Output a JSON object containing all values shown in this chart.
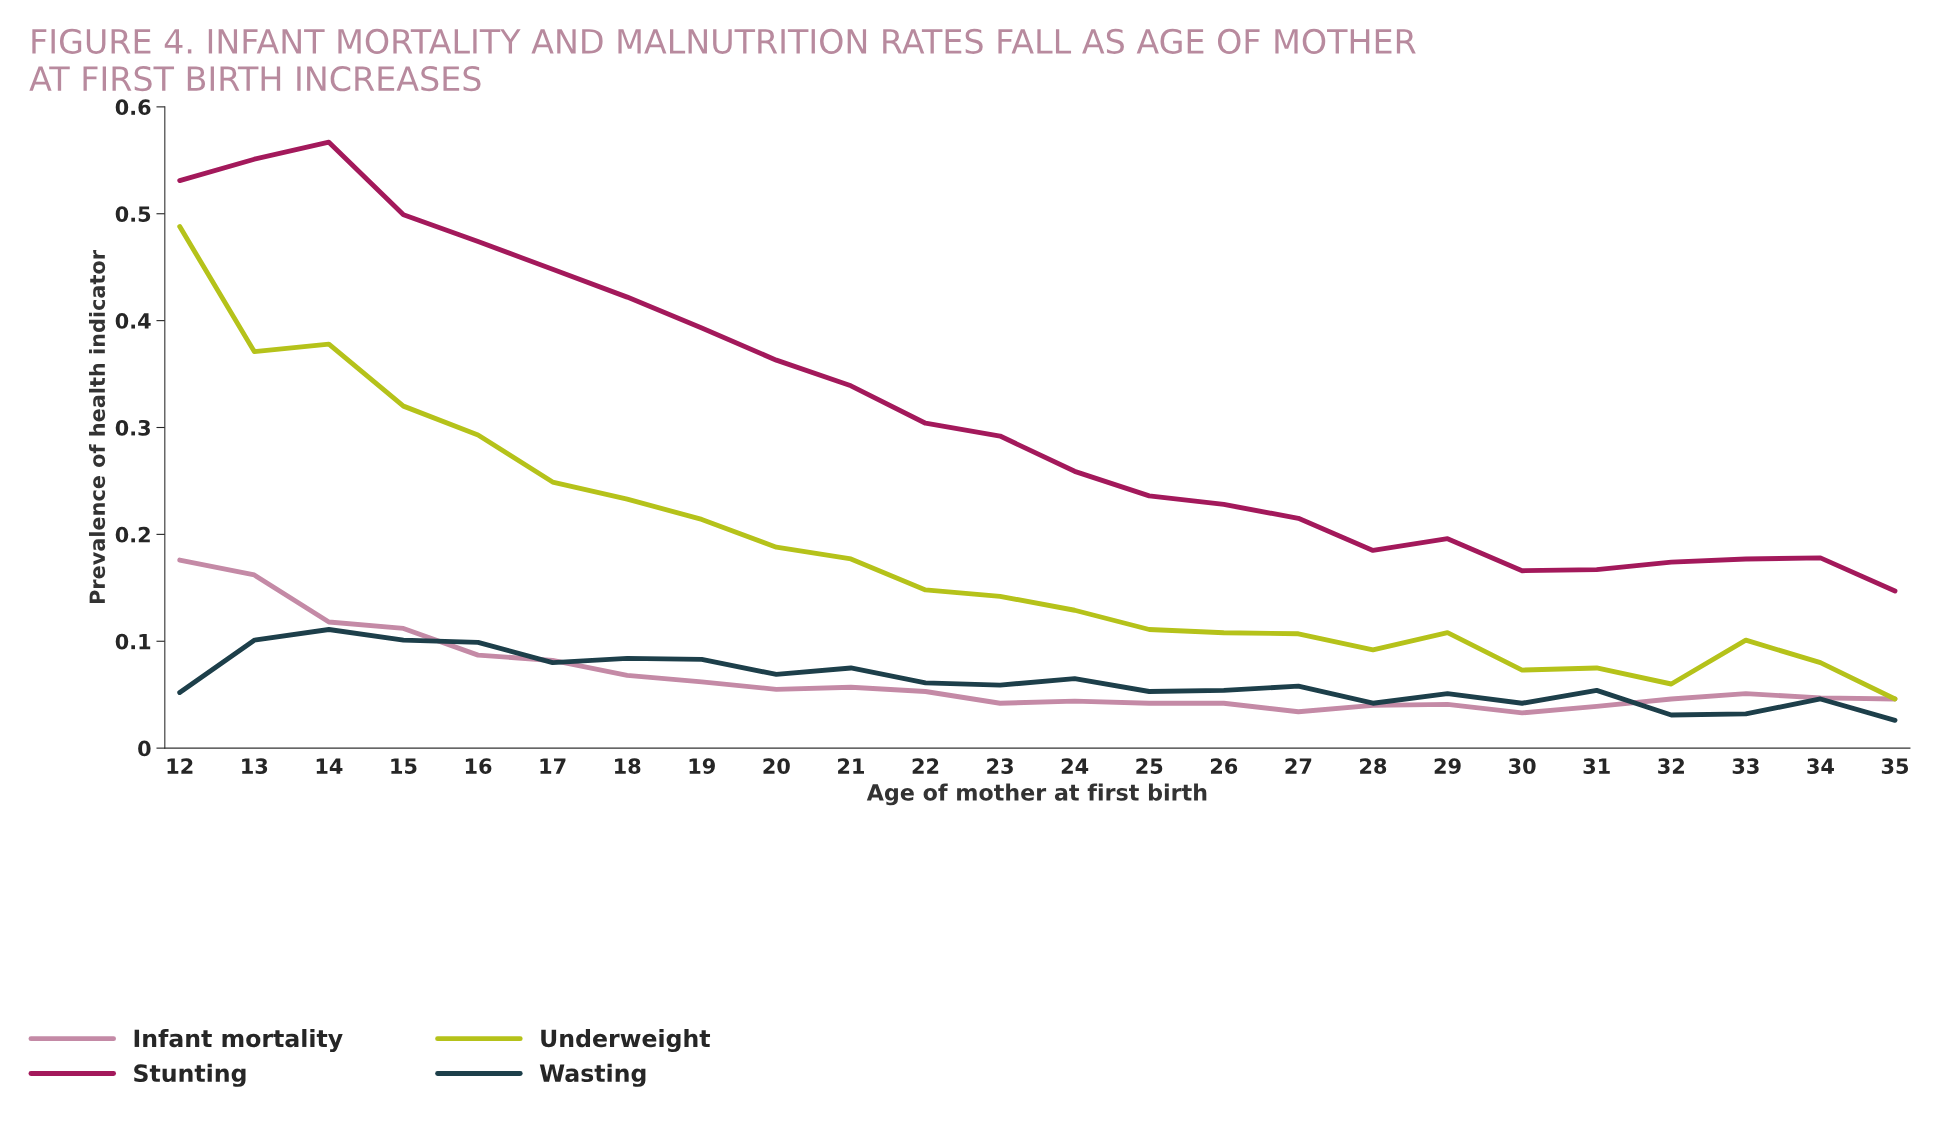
{
  "chart_data": {
    "type": "line",
    "title": "FIGURE 4. INFANT MORTALITY AND MALNUTRITION RATES FALL AS AGE OF MOTHER\nAT FIRST BIRTH INCREASES",
    "xlabel": "Age of mother at first birth",
    "ylabel": "Prevalence of health indicator",
    "categories": [
      "12",
      "13",
      "14",
      "15",
      "16",
      "17",
      "18",
      "19",
      "20",
      "21",
      "22",
      "23",
      "24",
      "25",
      "26",
      "27",
      "28",
      "29",
      "30",
      "31",
      "32",
      "33",
      "34",
      "35"
    ],
    "series": [
      {
        "name": "Infant mortality",
        "color": "#c48aa6",
        "values": [
          0.176,
          0.162,
          0.118,
          0.112,
          0.087,
          0.082,
          0.068,
          0.062,
          0.055,
          0.057,
          0.053,
          0.042,
          0.044,
          0.042,
          0.042,
          0.034,
          0.04,
          0.041,
          0.033,
          0.039,
          0.046,
          0.051,
          0.047,
          0.046
        ]
      },
      {
        "name": "Stunting",
        "color": "#a3195b",
        "values": [
          0.531,
          0.551,
          0.567,
          0.499,
          0.474,
          0.448,
          0.422,
          0.393,
          0.363,
          0.339,
          0.304,
          0.292,
          0.259,
          0.236,
          0.228,
          0.215,
          0.185,
          0.196,
          0.166,
          0.167,
          0.174,
          0.177,
          0.178,
          0.147
        ]
      },
      {
        "name": "Underweight",
        "color": "#b5c21a",
        "values": [
          0.488,
          0.371,
          0.378,
          0.32,
          0.293,
          0.249,
          0.233,
          0.214,
          0.188,
          0.177,
          0.148,
          0.142,
          0.129,
          0.111,
          0.108,
          0.107,
          0.092,
          0.108,
          0.073,
          0.075,
          0.06,
          0.101,
          0.08,
          0.046
        ]
      },
      {
        "name": "Wasting",
        "color": "#1d3f4a",
        "values": [
          0.052,
          0.101,
          0.111,
          0.101,
          0.099,
          0.08,
          0.084,
          0.083,
          0.069,
          0.075,
          0.061,
          0.059,
          0.065,
          0.053,
          0.054,
          0.058,
          0.042,
          0.051,
          0.042,
          0.054,
          0.031,
          0.032,
          0.046,
          0.026
        ]
      }
    ],
    "ylim": [
      0,
      0.6
    ],
    "yticks": [
      0,
      0.1,
      0.2,
      0.3,
      0.4,
      0.5,
      0.6
    ],
    "grid": false,
    "legend": "bottom left",
    "line_style": "solid",
    "marker": "none"
  }
}
